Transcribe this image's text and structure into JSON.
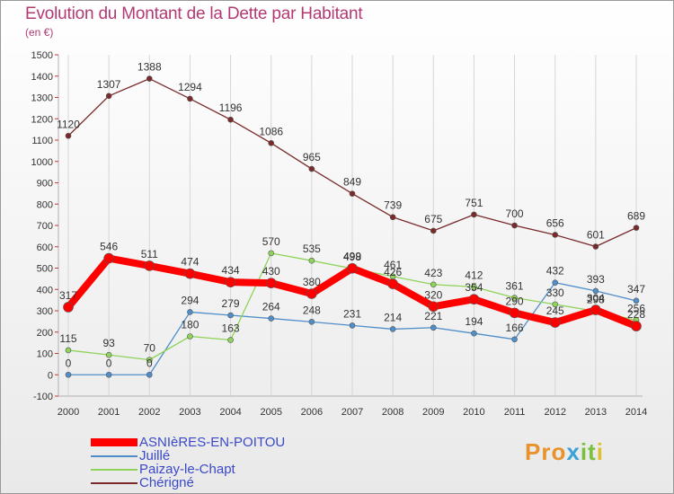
{
  "title": "Evolution du Montant de la Dette par Habitant",
  "unit": "(en €)",
  "logo": [
    "Pro",
    "x",
    "it",
    "i"
  ],
  "chart_data": {
    "type": "line",
    "x": [
      "2000",
      "2001",
      "2002",
      "2003",
      "2004",
      "2005",
      "2006",
      "2007",
      "2008",
      "2009",
      "2010",
      "2011",
      "2012",
      "2013",
      "2014"
    ],
    "ylim": [
      -100,
      1500
    ],
    "yticks": [
      -100,
      0,
      100,
      200,
      300,
      400,
      500,
      600,
      700,
      800,
      900,
      1000,
      1100,
      1200,
      1300,
      1400,
      1500
    ],
    "grid": "vertical",
    "legend_position": "bottom-left",
    "series": [
      {
        "name": "Chérigné",
        "color": "#7a2a2a",
        "values": [
          1120,
          1307,
          1388,
          1294,
          1196,
          1086,
          965,
          849,
          739,
          675,
          751,
          700,
          656,
          601,
          689
        ]
      },
      {
        "name": "Juillé",
        "color": "#4f8ec9",
        "values": [
          0,
          0,
          0,
          294,
          279,
          264,
          248,
          231,
          214,
          221,
          194,
          166,
          432,
          393,
          347
        ]
      },
      {
        "name": "Paizay-le-Chapt",
        "color": "#8fd35a",
        "values": [
          115,
          93,
          70,
          180,
          163,
          570,
          535,
          498,
          461,
          423,
          412,
          361,
          330,
          298,
          256
        ]
      },
      {
        "name": "ASNIèRES-EN-POITOU",
        "color": "#ff0000",
        "values": [
          317,
          546,
          511,
          474,
          434,
          430,
          380,
          499,
          426,
          320,
          354,
          290,
          245,
          304,
          228
        ]
      }
    ],
    "legend": [
      "ASNIèRES-EN-POITOU",
      "Juillé",
      "Paizay-le-Chapt",
      "Chérigné"
    ]
  }
}
